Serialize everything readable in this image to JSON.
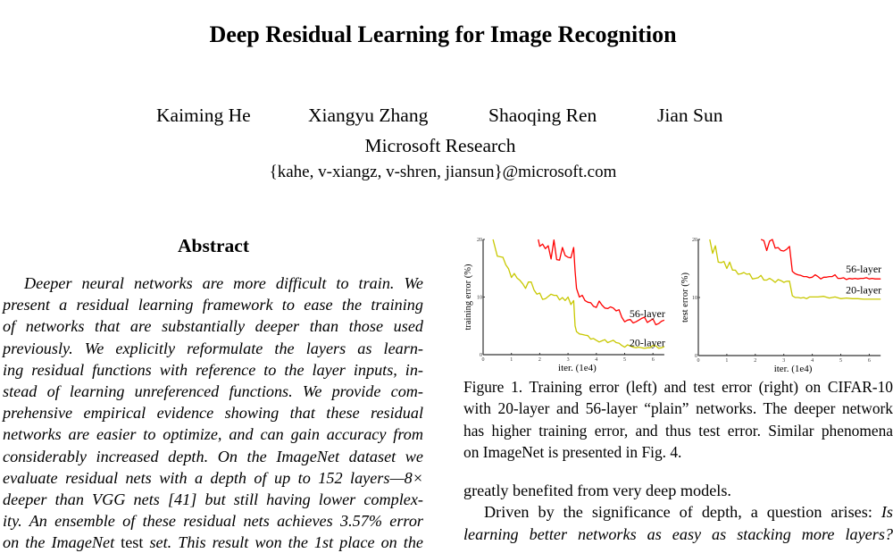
{
  "paper": {
    "title": "Deep Residual Learning for Image Recognition",
    "authors": [
      "Kaiming He",
      "Xiangyu Zhang",
      "Shaoqing Ren",
      "Jian Sun"
    ],
    "affiliation": "Microsoft Research",
    "email": "{kahe, v-xiangz, v-shren, jiansun}@microsoft.com"
  },
  "abstract": {
    "heading": "Abstract",
    "lines": [
      "Deeper neural networks are more difficult to train.  We",
      "present a residual learning framework to ease the training",
      "of networks that are substantially deeper than those used",
      "previously.  We explicitly reformulate the layers as learn-",
      "ing residual functions with reference to the layer inputs, in-",
      "stead of learning unreferenced functions.  We provide com-",
      "prehensive empirical evidence showing that these residual",
      "networks are easier to optimize, and can gain accuracy from",
      "considerably increased depth.  On the ImageNet dataset we",
      "evaluate residual nets with a depth of up to 152 layers—8×",
      "deeper than VGG nets [41] but still having lower complex-",
      "ity. An ensemble of these residual nets achieves 3.57% error"
    ],
    "last_line": {
      "pre": "on the ImageNet ",
      "upright": "test",
      "post": " set. This result won the 1st place on the"
    }
  },
  "figure": {
    "caption_lines": [
      "Figure 1. Training error (left) and test error (right) on CIFAR-10",
      "with 20-layer and 56-layer “plain” networks. The deeper network",
      "has higher training error, and thus test error.  Similar phenomena",
      "on ImageNet is presented in Fig. 4."
    ]
  },
  "right_text": {
    "line1": "greatly benefited from very deep models.",
    "line2_pre": "Driven by the significance of depth, a question arises: ",
    "line2_it": "Is",
    "line3_it": "learning better networks as easy as stacking more layers?"
  },
  "chart_data": [
    {
      "type": "line",
      "title": "",
      "xlabel": "iter. (1e4)",
      "ylabel": "training error (%)",
      "xlim": [
        0,
        6.4
      ],
      "ylim": [
        0,
        20
      ],
      "xticks": [
        "0",
        "1",
        "2",
        "3",
        "4",
        "5",
        "6"
      ],
      "yticks": [
        "0",
        "10",
        "20"
      ],
      "grid": false,
      "series": [
        {
          "name": "56-layer",
          "color": "#ff0000",
          "x": [
            1.95,
            2.0,
            2.1,
            2.2,
            2.3,
            2.4,
            2.5,
            2.6,
            2.7,
            2.8,
            2.9,
            3.0,
            3.1,
            3.2,
            3.25,
            3.3,
            3.4,
            3.5,
            3.6,
            3.7,
            3.8,
            3.9,
            4.0,
            4.1,
            4.2,
            4.3,
            4.4,
            4.5,
            4.6,
            4.7,
            4.8,
            4.9,
            5.0,
            5.1,
            5.2,
            5.3,
            5.4,
            5.5,
            5.6,
            5.7,
            5.8,
            5.9,
            6.0,
            6.1,
            6.2,
            6.3,
            6.4
          ],
          "values": [
            20,
            18.8,
            19.2,
            18.4,
            18.9,
            16.6,
            19.9,
            16.5,
            16.4,
            18.6,
            17.2,
            16.9,
            16.8,
            18.6,
            14.5,
            11.5,
            10.0,
            10.3,
            9.4,
            9.1,
            9.0,
            8.4,
            8.2,
            9.3,
            8.6,
            8.1,
            8.0,
            8.3,
            8.1,
            7.6,
            7.8,
            6.5,
            5.7,
            6.0,
            6.1,
            5.5,
            5.7,
            6.0,
            6.3,
            6.5,
            5.6,
            5.9,
            6.2,
            5.2,
            5.4,
            5.8,
            6.0
          ]
        },
        {
          "name": "20-layer",
          "color": "#c8c800",
          "x": [
            0.35,
            0.5,
            0.7,
            0.8,
            0.9,
            1.0,
            1.1,
            1.2,
            1.3,
            1.4,
            1.5,
            1.6,
            1.7,
            1.8,
            1.9,
            2.0,
            2.1,
            2.2,
            2.3,
            2.4,
            2.5,
            2.6,
            2.7,
            2.8,
            2.9,
            3.0,
            3.1,
            3.2,
            3.25,
            3.3,
            3.4,
            3.5,
            3.6,
            3.7,
            3.8,
            3.9,
            4.0,
            4.1,
            4.2,
            4.3,
            4.4,
            4.5,
            4.6,
            4.7,
            4.8,
            4.9,
            5.0,
            5.1,
            5.2,
            5.3,
            5.4,
            5.5,
            5.6,
            5.7,
            5.8,
            5.9,
            6.0,
            6.1,
            6.2,
            6.3,
            6.4
          ],
          "values": [
            20,
            17.1,
            16.9,
            15.6,
            14.9,
            13.4,
            14.1,
            13.3,
            12.9,
            12.3,
            11.5,
            12.6,
            12.6,
            11.2,
            10.5,
            10.7,
            9.6,
            9.7,
            10.1,
            10.5,
            10.3,
            10.3,
            9.5,
            9.9,
            9.4,
            10.0,
            8.7,
            9.4,
            5.0,
            4.0,
            3.6,
            3.5,
            3.4,
            3.3,
            2.7,
            2.8,
            2.5,
            2.2,
            2.4,
            2.6,
            2.1,
            2.3,
            2.5,
            2.1,
            2.0,
            1.6,
            1.3,
            1.7,
            1.5,
            1.3,
            1.2,
            1.3,
            1.2,
            1.1,
            1.2,
            1.2,
            1.6,
            1.5,
            1.1,
            1.2,
            1.4
          ]
        }
      ],
      "annotations": [
        {
          "text": "56-layer",
          "x": 5.9,
          "y": 6.5
        },
        {
          "text": "20-layer",
          "x": 5.9,
          "y": 1.5
        }
      ]
    },
    {
      "type": "line",
      "title": "",
      "xlabel": "iter. (1e4)",
      "ylabel": "test error (%)",
      "xlim": [
        0,
        6.4
      ],
      "ylim": [
        0,
        20
      ],
      "xticks": [
        "0",
        "1",
        "2",
        "3",
        "4",
        "5",
        "6"
      ],
      "yticks": [
        "0",
        "10",
        "20"
      ],
      "grid": false,
      "series": [
        {
          "name": "56-layer",
          "color": "#ff0000",
          "x": [
            2.2,
            2.3,
            2.4,
            2.5,
            2.6,
            2.7,
            2.8,
            2.9,
            3.0,
            3.1,
            3.2,
            3.3,
            3.4,
            3.5,
            3.6,
            3.7,
            3.8,
            3.9,
            4.0,
            4.1,
            4.2,
            4.3,
            4.4,
            4.5,
            4.6,
            4.7,
            4.8,
            4.9,
            5.0,
            5.1,
            5.2,
            5.3,
            5.4,
            5.5,
            5.6,
            5.7,
            5.8,
            5.9,
            6.0,
            6.1,
            6.2,
            6.3,
            6.4
          ],
          "values": [
            20,
            19.8,
            18.1,
            19.7,
            20,
            18.5,
            18.6,
            18.1,
            18.0,
            18.3,
            18.8,
            14.5,
            14.1,
            13.9,
            13.8,
            13.6,
            13.6,
            13.4,
            13.5,
            13.9,
            13.6,
            13.2,
            13.5,
            13.5,
            13.6,
            13.6,
            13.9,
            13.3,
            13.3,
            13.4,
            13.1,
            13.3,
            13.2,
            13.3,
            13.2,
            13.3,
            13.3,
            13.4,
            13.2,
            13.3,
            13.2,
            13.2,
            13.2
          ]
        },
        {
          "name": "20-layer",
          "color": "#c8c800",
          "x": [
            0.4,
            0.5,
            0.6,
            0.7,
            0.8,
            0.9,
            1.0,
            1.1,
            1.2,
            1.3,
            1.4,
            1.5,
            1.6,
            1.7,
            1.8,
            1.9,
            2.0,
            2.1,
            2.2,
            2.3,
            2.4,
            2.5,
            2.6,
            2.7,
            2.8,
            2.9,
            3.0,
            3.1,
            3.2,
            3.3,
            3.4,
            3.5,
            3.6,
            3.7,
            3.8,
            3.9,
            4.0,
            4.2,
            4.4,
            4.6,
            4.8,
            5.0,
            5.2,
            5.4,
            5.6,
            5.8,
            6.0,
            6.2,
            6.4
          ],
          "values": [
            20,
            17.6,
            18.9,
            16.1,
            16.0,
            16.2,
            15.0,
            16.1,
            14.7,
            14.7,
            14.0,
            14.1,
            14.3,
            14.0,
            14.1,
            13.2,
            13.3,
            13.4,
            13.8,
            13.0,
            13.0,
            13.3,
            13.0,
            12.6,
            13.1,
            12.9,
            12.6,
            12.8,
            12.8,
            10.3,
            10.0,
            10.0,
            9.9,
            10.0,
            9.8,
            10.1,
            10.1,
            10.1,
            10.2,
            9.9,
            10.1,
            9.8,
            9.9,
            9.8,
            9.8,
            9.7,
            9.7,
            9.7,
            9.7
          ]
        }
      ],
      "annotations": [
        {
          "text": "56-layer",
          "x": 5.9,
          "y": 14.3
        },
        {
          "text": "20-layer",
          "x": 5.9,
          "y": 10.7
        }
      ]
    }
  ]
}
